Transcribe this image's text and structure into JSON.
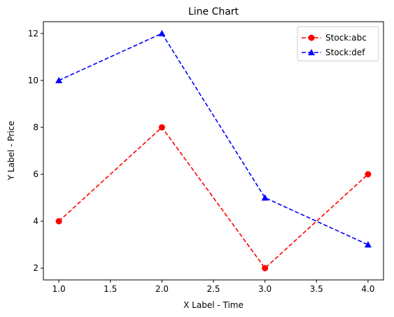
{
  "chart_data": {
    "type": "line",
    "title": "Line Chart",
    "xlabel": "X Label - Time",
    "ylabel": "Y Label - Price",
    "xlim": [
      0.85,
      4.15
    ],
    "ylim": [
      1.5,
      12.5
    ],
    "x_ticks": [
      1.0,
      1.5,
      2.0,
      2.5,
      3.0,
      3.5,
      4.0
    ],
    "x_tick_labels": [
      "1.0",
      "1.5",
      "2.0",
      "2.5",
      "3.0",
      "3.5",
      "4.0"
    ],
    "y_ticks": [
      2,
      4,
      6,
      8,
      10,
      12
    ],
    "y_tick_labels": [
      "2",
      "4",
      "6",
      "8",
      "10",
      "12"
    ],
    "grid": false,
    "legend_position": "top-right",
    "series": [
      {
        "name": "Stock:abc",
        "x": [
          1,
          2,
          3,
          4
        ],
        "y": [
          4,
          8,
          2,
          6
        ],
        "color": "#ff0000",
        "marker": "circle",
        "line_style": "dashed"
      },
      {
        "name": "Stock:def",
        "x": [
          1,
          2,
          3,
          4
        ],
        "y": [
          10,
          12,
          5,
          3
        ],
        "color": "#0000ff",
        "marker": "triangle",
        "line_style": "dashed"
      }
    ]
  }
}
